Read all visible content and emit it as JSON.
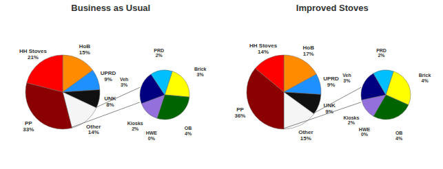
{
  "chart_data": [
    {
      "type": "pie",
      "title": "Business as Usual",
      "categories": [
        "HoB",
        "UPRD",
        "UNK",
        "Other",
        "PP",
        "HH Stoves"
      ],
      "values": [
        15,
        9,
        8,
        14,
        33,
        21
      ],
      "value_labels": [
        "15%",
        "9%",
        "8%",
        "14%",
        "33%",
        "21%"
      ],
      "colors": [
        "#FF8C00",
        "#1E90FF",
        "#111111",
        "#F5F5F5",
        "#8B0000",
        "#FF0000"
      ],
      "data_labels": true
    },
    {
      "type": "pie",
      "categories": [
        "Brick",
        "OB",
        "HWE",
        "Kiosks",
        "Veh",
        "PRD"
      ],
      "values": [
        3,
        4,
        0,
        2,
        3,
        2
      ],
      "value_labels": [
        "3%",
        "4%",
        "0%",
        "2%",
        "3%",
        "2%"
      ],
      "colors": [
        "#FFFF00",
        "#006400",
        "#FF69B4",
        "#9370DB",
        "#000080",
        "#00BFFF"
      ],
      "data_labels": true
    },
    {
      "type": "pie",
      "title": "Improved Stoves",
      "categories": [
        "HoB",
        "UPRD",
        "UNK",
        "Other",
        "PP",
        "HH Stoves"
      ],
      "values": [
        17,
        9,
        9,
        15,
        36,
        14
      ],
      "value_labels": [
        "17%",
        "9%",
        "9%",
        "15%",
        "36%",
        "14%"
      ],
      "colors": [
        "#FF8C00",
        "#1E90FF",
        "#111111",
        "#F5F5F5",
        "#8B0000",
        "#FF0000"
      ],
      "data_labels": true
    },
    {
      "type": "pie",
      "categories": [
        "Brick",
        "OB",
        "HWE",
        "Kiosks",
        "Veh",
        "PRD"
      ],
      "values": [
        4,
        4,
        0,
        2,
        3,
        2
      ],
      "value_labels": [
        "4%",
        "4%",
        "0%",
        "2%",
        "3%",
        "2%"
      ],
      "colors": [
        "#FFFF00",
        "#006400",
        "#FF69B4",
        "#9370DB",
        "#000080",
        "#00BFFF"
      ],
      "data_labels": true
    }
  ]
}
